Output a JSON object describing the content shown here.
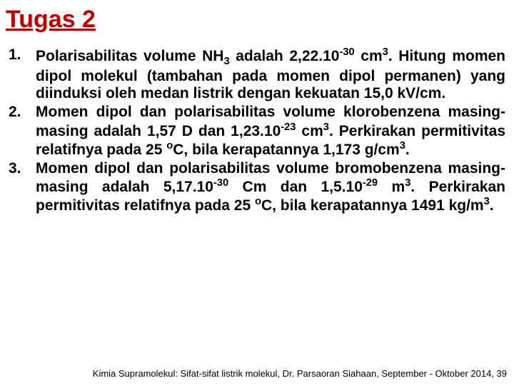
{
  "title": "Tugas 2",
  "items": [
    {
      "num": "1.",
      "text": "Polarisabilitas volume NH<sub>3</sub> adalah 2,22.10<sup>-30</sup> cm<sup>3</sup>. Hitung momen dipol molekul (tambahan pada momen dipol permanen) yang diinduksi oleh medan listrik dengan kekuatan 15,0 kV/cm."
    },
    {
      "num": "2.",
      "text": "Momen dipol dan polarisabilitas volume klorobenzena masing-masing adalah 1,57 D dan 1,23.10<sup>-23</sup> cm<sup>3</sup>. Perkirakan permitivitas relatifnya pada 25 <sup>o</sup>C, bila kerapatannya 1,173 g/cm<sup>3</sup>."
    },
    {
      "num": "3.",
      "text": "Momen dipol dan polarisabilitas volume bromobenzena masing-masing adalah 5,17.10<sup>-30</sup> Cm dan 1,5.10<sup>-29</sup> m<sup>3</sup>. Perkirakan permitivitas relatifnya pada 25 <sup>o</sup>C, bila kerapatannya 1491 kg/m<sup>3</sup>."
    }
  ],
  "footer": "Kimia Supramolekul: Sifat-sifat listrik molekul, Dr. Parsaoran Siahaan, September - Oktober 2014, 39",
  "colors": {
    "title": "#c00000",
    "text": "#000000",
    "background": "#ffffff"
  },
  "fonts": {
    "title_size": 34,
    "body_size": 21,
    "footer_size": 13,
    "family": "Comic Sans MS"
  }
}
